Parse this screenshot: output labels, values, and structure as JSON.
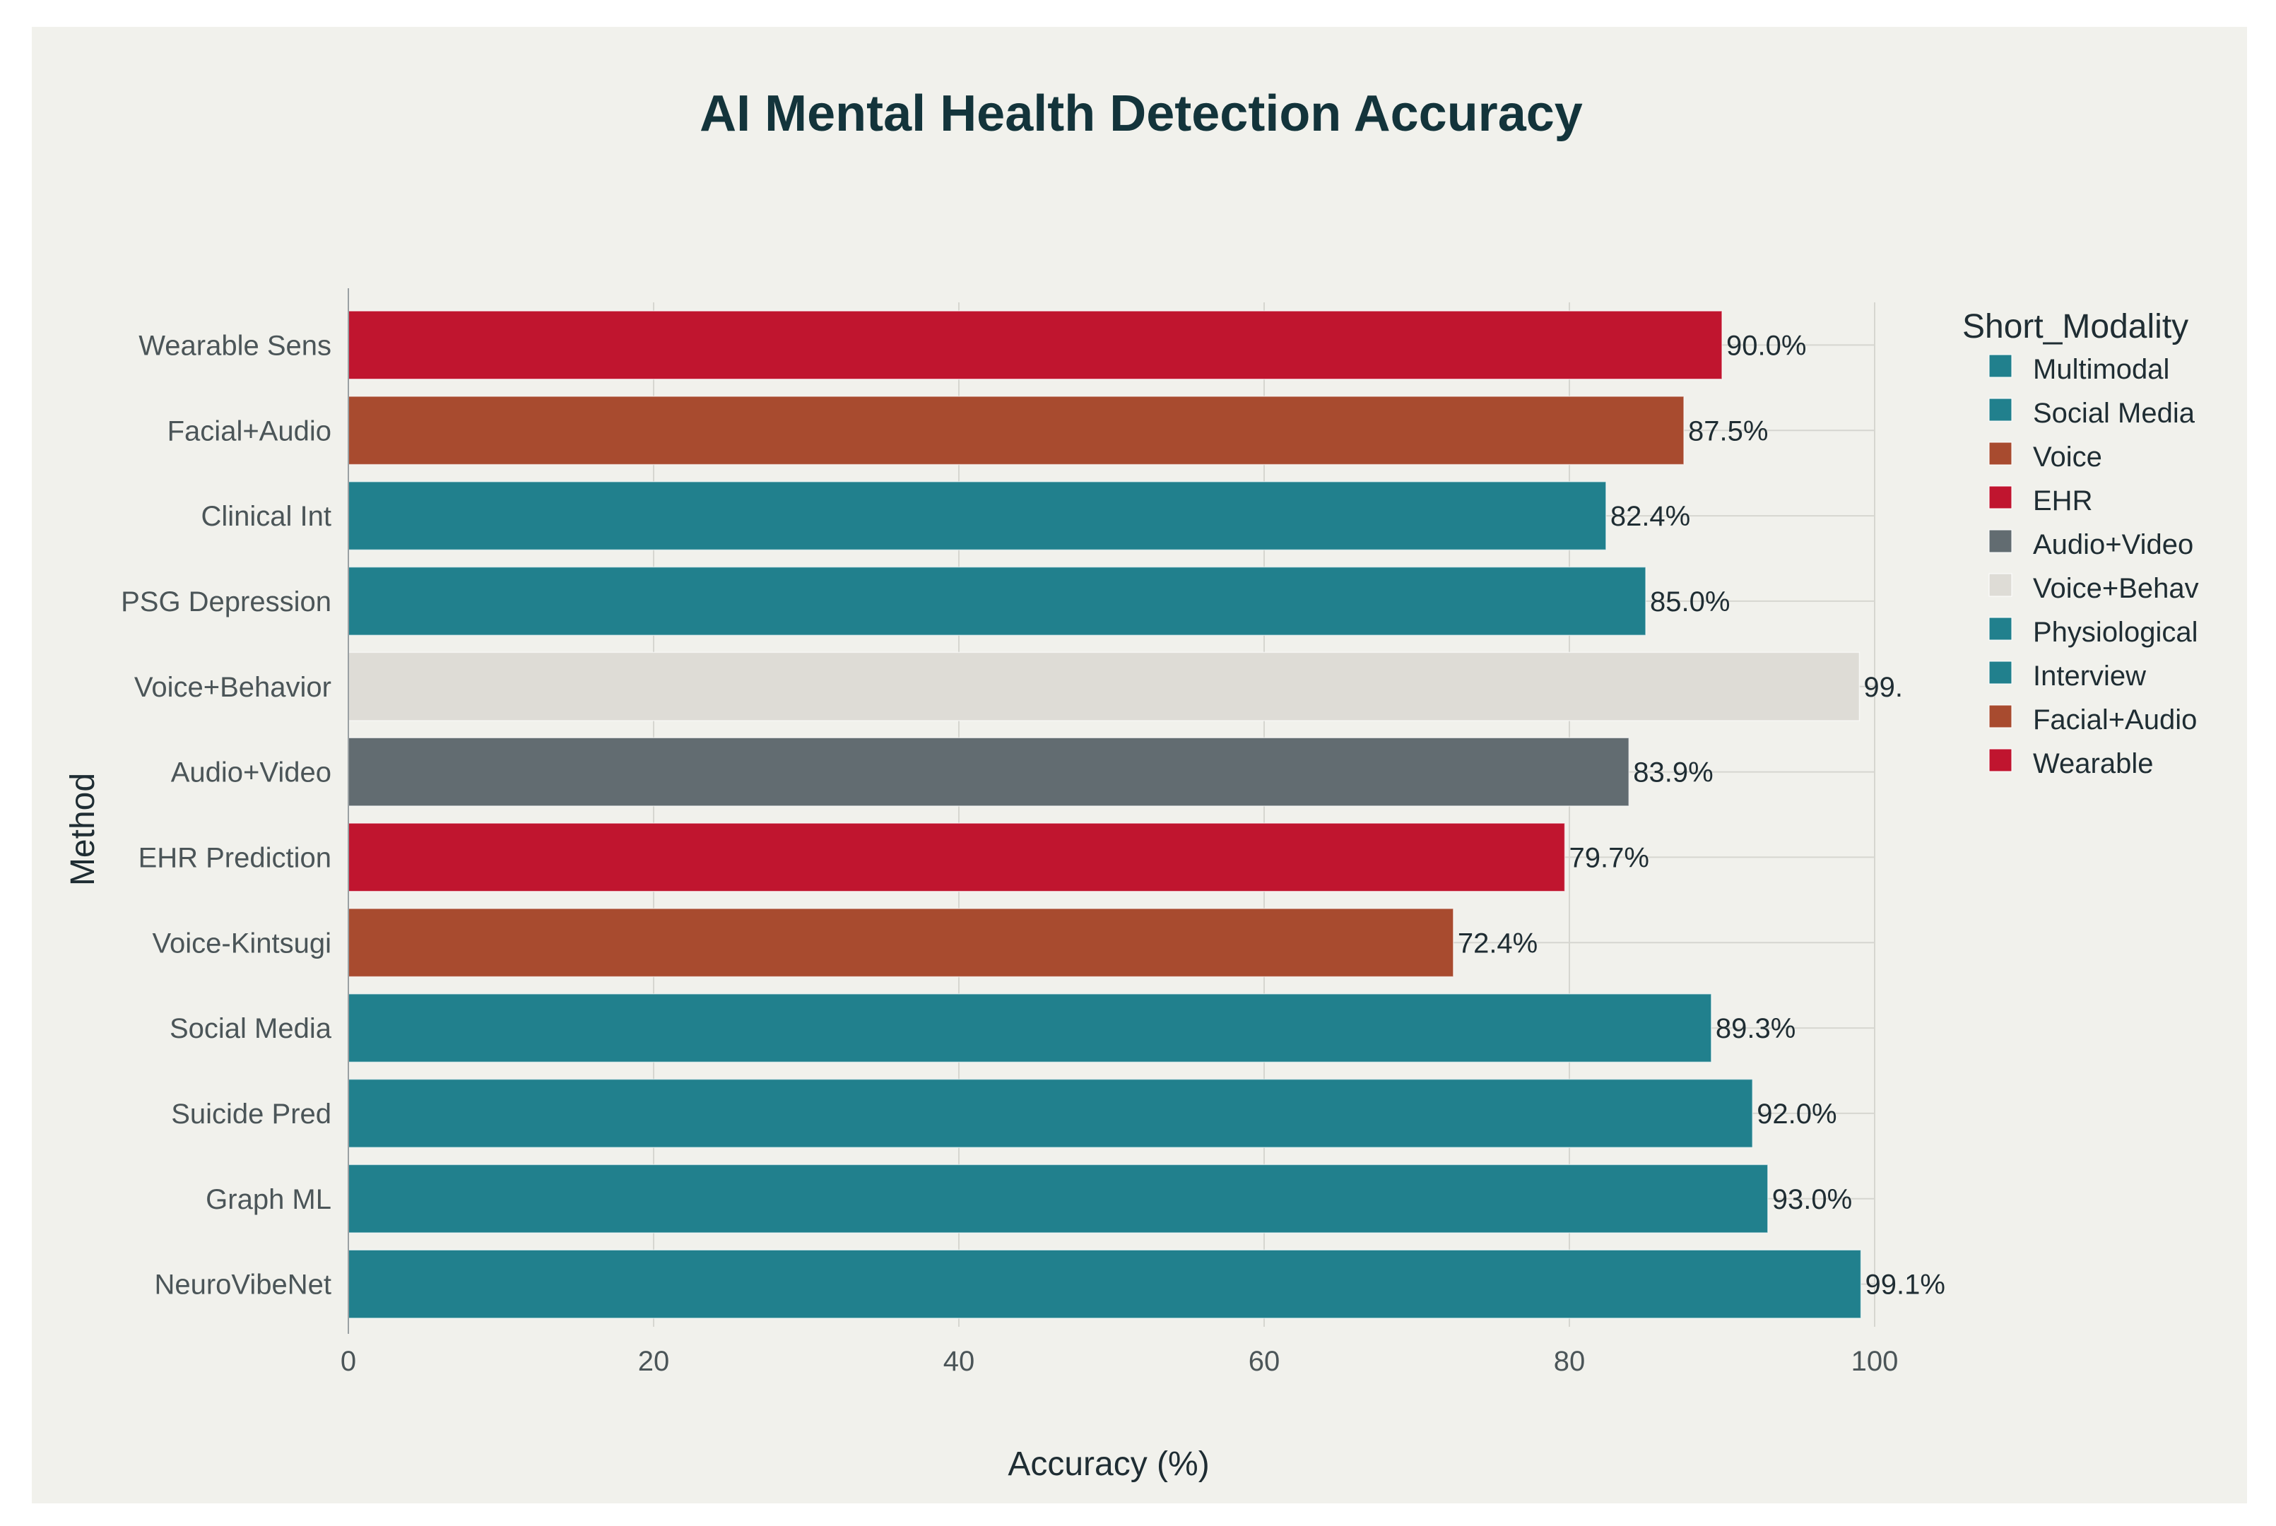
{
  "chart_data": {
    "type": "bar",
    "orientation": "horizontal",
    "title": "AI Mental Health Detection Accuracy",
    "xlabel": "Accuracy (%)",
    "ylabel": "Method",
    "xlim": [
      0,
      100
    ],
    "x_ticks": [
      "0",
      "20",
      "40",
      "60",
      "80",
      "100"
    ],
    "grid": true,
    "legend_position": "top-right",
    "legend_title": "Short_Modality",
    "legend": [
      {
        "label": "Multimodal",
        "color": "#21808d"
      },
      {
        "label": "Social Media",
        "color": "#21808d"
      },
      {
        "label": "Voice",
        "color": "#a84b2f"
      },
      {
        "label": "EHR",
        "color": "#c0152f"
      },
      {
        "label": "Audio+Video",
        "color": "#626c71"
      },
      {
        "label": "Voice+Behav",
        "color": "#dedcd6"
      },
      {
        "label": "Physiological",
        "color": "#21808d"
      },
      {
        "label": "Interview",
        "color": "#21808d"
      },
      {
        "label": "Facial+Audio",
        "color": "#a84b2f"
      },
      {
        "label": "Wearable",
        "color": "#c0152f"
      }
    ],
    "bars": [
      {
        "category": "Wearable Sens",
        "value": 90.0,
        "label": "90.0%",
        "color": "#c0152f"
      },
      {
        "category": "Facial+Audio",
        "value": 87.5,
        "label": "87.5%",
        "color": "#a84b2f"
      },
      {
        "category": "Clinical Int",
        "value": 82.4,
        "label": "82.4%",
        "color": "#21808d"
      },
      {
        "category": "PSG Depression",
        "value": 85.0,
        "label": "85.0%",
        "color": "#21808d"
      },
      {
        "category": "Voice+Behavior",
        "value": 99.0,
        "label": "99.",
        "color": "#dedcd6"
      },
      {
        "category": "Audio+Video",
        "value": 83.9,
        "label": "83.9%",
        "color": "#626c71"
      },
      {
        "category": "EHR Prediction",
        "value": 79.7,
        "label": "79.7%",
        "color": "#c0152f"
      },
      {
        "category": "Voice-Kintsugi",
        "value": 72.4,
        "label": "72.4%",
        "color": "#a84b2f"
      },
      {
        "category": "Social Media",
        "value": 89.3,
        "label": "89.3%",
        "color": "#21808d"
      },
      {
        "category": "Suicide Pred",
        "value": 92.0,
        "label": "92.0%",
        "color": "#21808d"
      },
      {
        "category": "Graph ML",
        "value": 93.0,
        "label": "93.0%",
        "color": "#21808d"
      },
      {
        "category": "NeuroVibeNet",
        "value": 99.1,
        "label": "99.1%",
        "color": "#21808d"
      }
    ]
  }
}
